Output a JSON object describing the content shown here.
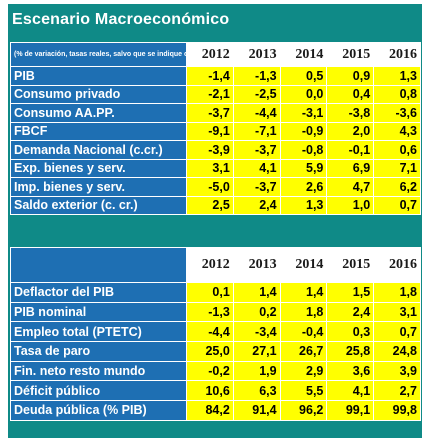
{
  "title": "Escenario Macroeconómico",
  "note": "(% de variación, tasas reales, salvo que se indique otra cosa)",
  "years": [
    "2012",
    "2013",
    "2014",
    "2015",
    "2016"
  ],
  "table1": [
    {
      "label": "PIB",
      "values": [
        "-1,4",
        "-1,3",
        "0,5",
        "0,9",
        "1,3"
      ]
    },
    {
      "label": "Consumo privado",
      "values": [
        "-2,1",
        "-2,5",
        "0,0",
        "0,4",
        "0,8"
      ]
    },
    {
      "label": "Consumo  AA.PP.",
      "values": [
        "-3,7",
        "-4,4",
        "-3,1",
        "-3,8",
        "-3,6"
      ]
    },
    {
      "label": "FBCF",
      "values": [
        "-9,1",
        "-7,1",
        "-0,9",
        "2,0",
        "4,3"
      ]
    },
    {
      "label": "Demanda Nacional  (c.cr.)",
      "values": [
        "-3,9",
        "-3,7",
        "-0,8",
        "-0,1",
        "0,6"
      ]
    },
    {
      "label": "Exp.  bienes y  serv.",
      "values": [
        "3,1",
        "4,1",
        "5,9",
        "6,9",
        "7,1"
      ]
    },
    {
      "label": "Imp.  bienes y serv.",
      "values": [
        "-5,0",
        "-3,7",
        "2,6",
        "4,7",
        "6,2"
      ]
    },
    {
      "label": "Saldo exterior  (c. cr.)",
      "values": [
        "2,5",
        "2,4",
        "1,3",
        "1,0",
        "0,7"
      ]
    }
  ],
  "table2": [
    {
      "label": "Deflactor del PIB",
      "values": [
        "0,1",
        "1,4",
        "1,4",
        "1,5",
        "1,8"
      ]
    },
    {
      "label": "PIB nominal",
      "values": [
        "-1,3",
        "0,2",
        "1,8",
        "2,4",
        "3,1"
      ]
    },
    {
      "label": "Empleo total (PTETC)",
      "values": [
        "-4,4",
        "-3,4",
        "-0,4",
        "0,3",
        "0,7"
      ]
    },
    {
      "label": "Tasa de paro",
      "values": [
        "25,0",
        "27,1",
        "26,7",
        "25,8",
        "24,8"
      ]
    },
    {
      "label": "Fin. neto resto mundo",
      "values": [
        "-0,2",
        "1,9",
        "2,9",
        "3,6",
        "3,9"
      ]
    },
    {
      "label": "Déficit público",
      "values": [
        "10,6",
        "6,3",
        "5,5",
        "4,1",
        "2,7"
      ]
    },
    {
      "label": "Deuda pública (% PIB)",
      "values": [
        "84,2",
        "91,4",
        "96,2",
        "99,1",
        "99,8"
      ]
    }
  ]
}
